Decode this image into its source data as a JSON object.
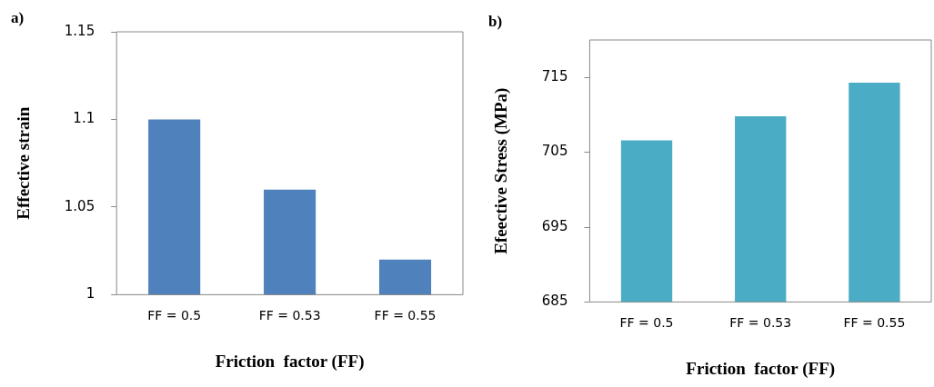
{
  "chart_data": [
    {
      "type": "bar",
      "annotations": [
        "a)"
      ],
      "xlabel": "Friction  factor (FF)",
      "ylabel": "Effective strain",
      "categories": [
        "FF = 0.5",
        "FF = 0.53",
        "FF = 0.55"
      ],
      "values": [
        1.1,
        1.06,
        1.02
      ],
      "color": "#4f81bd",
      "ylim": [
        1,
        1.15
      ],
      "yticks": [
        1,
        1.05,
        1.1,
        1.15
      ],
      "grid": false,
      "legend": false
    },
    {
      "type": "bar",
      "annotations": [
        "b)"
      ],
      "xlabel": "Friction  factor (FF)",
      "ylabel": "Efeective Stress (MPa)",
      "categories": [
        "FF = 0.5",
        "FF = 0.53",
        "FF = 0.55"
      ],
      "values": [
        706.6,
        709.8,
        714.3
      ],
      "color": "#4bacc6",
      "ylim": [
        685,
        720
      ],
      "yticks": [
        685,
        695,
        705,
        715
      ],
      "grid": false,
      "legend": false
    }
  ]
}
